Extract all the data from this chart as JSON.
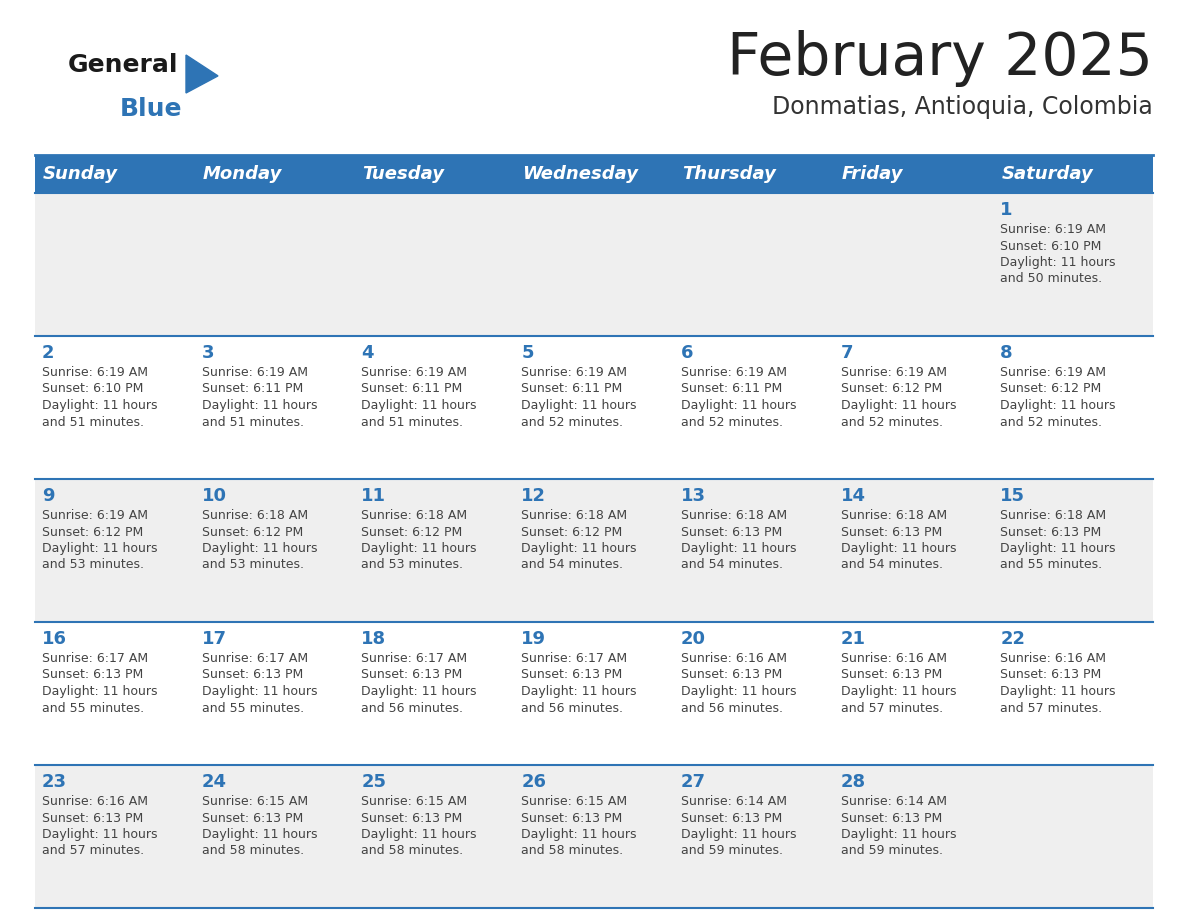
{
  "title": "February 2025",
  "subtitle": "Donmatias, Antioquia, Colombia",
  "header_bg": "#2E74B5",
  "header_text_color": "#FFFFFF",
  "day_names": [
    "Sunday",
    "Monday",
    "Tuesday",
    "Wednesday",
    "Thursday",
    "Friday",
    "Saturday"
  ],
  "alt_row_bg": "#EFEFEF",
  "white_bg": "#FFFFFF",
  "border_color": "#2E74B5",
  "title_color": "#222222",
  "subtitle_color": "#333333",
  "day_num_color": "#2E74B5",
  "cell_text_color": "#444444",
  "calendar": [
    [
      null,
      null,
      null,
      null,
      null,
      null,
      {
        "day": 1,
        "sunrise": "6:19 AM",
        "sunset": "6:10 PM",
        "daylight": "11 hours and 50 minutes"
      }
    ],
    [
      {
        "day": 2,
        "sunrise": "6:19 AM",
        "sunset": "6:10 PM",
        "daylight": "11 hours and 51 minutes"
      },
      {
        "day": 3,
        "sunrise": "6:19 AM",
        "sunset": "6:11 PM",
        "daylight": "11 hours and 51 minutes"
      },
      {
        "day": 4,
        "sunrise": "6:19 AM",
        "sunset": "6:11 PM",
        "daylight": "11 hours and 51 minutes"
      },
      {
        "day": 5,
        "sunrise": "6:19 AM",
        "sunset": "6:11 PM",
        "daylight": "11 hours and 52 minutes"
      },
      {
        "day": 6,
        "sunrise": "6:19 AM",
        "sunset": "6:11 PM",
        "daylight": "11 hours and 52 minutes"
      },
      {
        "day": 7,
        "sunrise": "6:19 AM",
        "sunset": "6:12 PM",
        "daylight": "11 hours and 52 minutes"
      },
      {
        "day": 8,
        "sunrise": "6:19 AM",
        "sunset": "6:12 PM",
        "daylight": "11 hours and 52 minutes"
      }
    ],
    [
      {
        "day": 9,
        "sunrise": "6:19 AM",
        "sunset": "6:12 PM",
        "daylight": "11 hours and 53 minutes"
      },
      {
        "day": 10,
        "sunrise": "6:18 AM",
        "sunset": "6:12 PM",
        "daylight": "11 hours and 53 minutes"
      },
      {
        "day": 11,
        "sunrise": "6:18 AM",
        "sunset": "6:12 PM",
        "daylight": "11 hours and 53 minutes"
      },
      {
        "day": 12,
        "sunrise": "6:18 AM",
        "sunset": "6:12 PM",
        "daylight": "11 hours and 54 minutes"
      },
      {
        "day": 13,
        "sunrise": "6:18 AM",
        "sunset": "6:13 PM",
        "daylight": "11 hours and 54 minutes"
      },
      {
        "day": 14,
        "sunrise": "6:18 AM",
        "sunset": "6:13 PM",
        "daylight": "11 hours and 54 minutes"
      },
      {
        "day": 15,
        "sunrise": "6:18 AM",
        "sunset": "6:13 PM",
        "daylight": "11 hours and 55 minutes"
      }
    ],
    [
      {
        "day": 16,
        "sunrise": "6:17 AM",
        "sunset": "6:13 PM",
        "daylight": "11 hours and 55 minutes"
      },
      {
        "day": 17,
        "sunrise": "6:17 AM",
        "sunset": "6:13 PM",
        "daylight": "11 hours and 55 minutes"
      },
      {
        "day": 18,
        "sunrise": "6:17 AM",
        "sunset": "6:13 PM",
        "daylight": "11 hours and 56 minutes"
      },
      {
        "day": 19,
        "sunrise": "6:17 AM",
        "sunset": "6:13 PM",
        "daylight": "11 hours and 56 minutes"
      },
      {
        "day": 20,
        "sunrise": "6:16 AM",
        "sunset": "6:13 PM",
        "daylight": "11 hours and 56 minutes"
      },
      {
        "day": 21,
        "sunrise": "6:16 AM",
        "sunset": "6:13 PM",
        "daylight": "11 hours and 57 minutes"
      },
      {
        "day": 22,
        "sunrise": "6:16 AM",
        "sunset": "6:13 PM",
        "daylight": "11 hours and 57 minutes"
      }
    ],
    [
      {
        "day": 23,
        "sunrise": "6:16 AM",
        "sunset": "6:13 PM",
        "daylight": "11 hours and 57 minutes"
      },
      {
        "day": 24,
        "sunrise": "6:15 AM",
        "sunset": "6:13 PM",
        "daylight": "11 hours and 58 minutes"
      },
      {
        "day": 25,
        "sunrise": "6:15 AM",
        "sunset": "6:13 PM",
        "daylight": "11 hours and 58 minutes"
      },
      {
        "day": 26,
        "sunrise": "6:15 AM",
        "sunset": "6:13 PM",
        "daylight": "11 hours and 58 minutes"
      },
      {
        "day": 27,
        "sunrise": "6:14 AM",
        "sunset": "6:13 PM",
        "daylight": "11 hours and 59 minutes"
      },
      {
        "day": 28,
        "sunrise": "6:14 AM",
        "sunset": "6:13 PM",
        "daylight": "11 hours and 59 minutes"
      },
      null
    ]
  ]
}
